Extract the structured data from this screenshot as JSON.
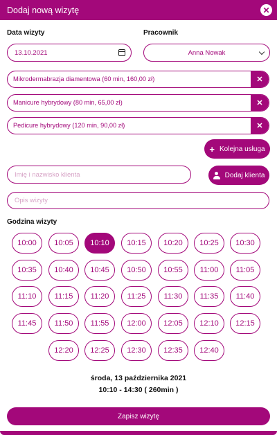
{
  "header": {
    "title": "Dodaj nową wizytę"
  },
  "form": {
    "date_label": "Data wizyty",
    "date_value": "13.10.2021",
    "employee_label": "Pracownik",
    "employee_value": "Anna Nowak",
    "services": [
      "Mikrodermabrazja diamentowa (60 min, 160,00 zł)",
      "Manicure hybrydowy (80 min, 65,00 zł)",
      "Pedicure hybrydowy (120 min, 90,00 zł)"
    ],
    "add_service_label": "Kolejna usługa",
    "client_placeholder": "Imię i nazwisko klienta",
    "add_client_label": "Dodaj klienta",
    "description_placeholder": "Opis wizyty",
    "time_label": "Godzina wizyty"
  },
  "time_slots": [
    "10:00",
    "10:05",
    "10:10",
    "10:15",
    "10:20",
    "10:25",
    "10:30",
    "10:35",
    "10:40",
    "10:45",
    "10:50",
    "10:55",
    "11:00",
    "11:05",
    "11:10",
    "11:15",
    "11:20",
    "11:25",
    "11:30",
    "11:35",
    "11:40",
    "11:45",
    "11:50",
    "11:55",
    "12:00",
    "12:05",
    "12:10",
    "12:15",
    "12:20",
    "12:25",
    "12:30",
    "12:35",
    "12:40"
  ],
  "selected_slot": "10:10",
  "summary": {
    "date": "środa, 13 października 2021",
    "range": "10:10 - 14:30 ( 260min )"
  },
  "save_label": "Zapisz wizytę",
  "colors": {
    "accent": "#a3087a"
  }
}
